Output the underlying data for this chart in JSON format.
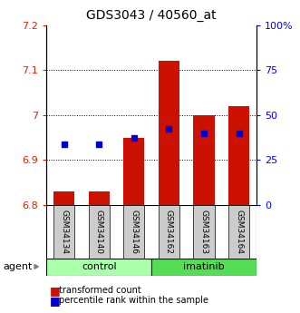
{
  "title": "GDS3043 / 40560_at",
  "samples": [
    "GSM34134",
    "GSM34140",
    "GSM34146",
    "GSM34162",
    "GSM34163",
    "GSM34164"
  ],
  "red_values": [
    6.83,
    6.83,
    6.95,
    7.12,
    7.0,
    7.02
  ],
  "blue_values": [
    6.935,
    6.935,
    6.95,
    6.97,
    6.96,
    6.96
  ],
  "y_min": 6.8,
  "y_max": 7.2,
  "y_ticks": [
    6.8,
    6.9,
    7.0,
    7.1,
    7.2
  ],
  "y_tick_labels": [
    "6.8",
    "6.9",
    "7",
    "7.1",
    "7.2"
  ],
  "pct_ticks": [
    0,
    25,
    50,
    75,
    100
  ],
  "pct_tick_labels": [
    "0",
    "25",
    "50",
    "75",
    "100%"
  ],
  "bar_color": "#cc1100",
  "blue_color": "#0000cc",
  "control_color": "#aaffaa",
  "imatinib_color": "#55dd55",
  "label_bg_color": "#cccccc",
  "grid_lines": [
    6.9,
    7.0,
    7.1
  ],
  "legend_red": "transformed count",
  "legend_blue": "percentile rank within the sample"
}
